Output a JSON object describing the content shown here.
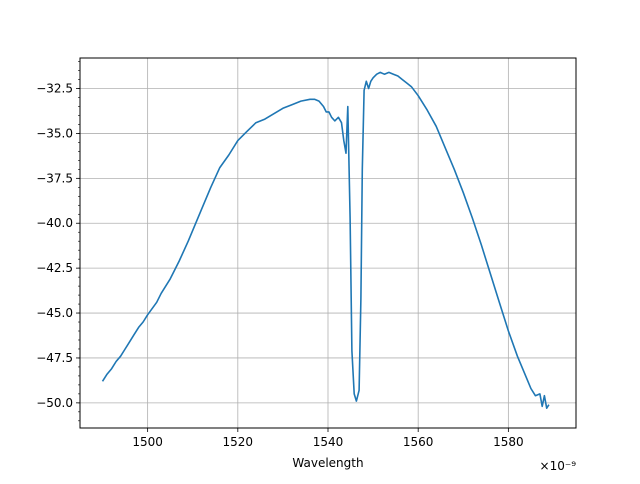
{
  "chart_data": {
    "type": "line",
    "title": "",
    "xlabel": "Wavelength",
    "ylabel": "",
    "x_offset_label": "×10⁻⁹",
    "xlim": [
      1485,
      1595
    ],
    "ylim": [
      -51.4,
      -30.8
    ],
    "x_ticks": [
      {
        "value": 1500,
        "label": "1500"
      },
      {
        "value": 1520,
        "label": "1520"
      },
      {
        "value": 1540,
        "label": "1540"
      },
      {
        "value": 1560,
        "label": "1560"
      },
      {
        "value": 1580,
        "label": "1580"
      }
    ],
    "y_ticks": [
      {
        "value": -32.5,
        "label": "−32.5"
      },
      {
        "value": -35.0,
        "label": "−35.0"
      },
      {
        "value": -37.5,
        "label": "−37.5"
      },
      {
        "value": -40.0,
        "label": "−40.0"
      },
      {
        "value": -42.5,
        "label": "−42.5"
      },
      {
        "value": -45.0,
        "label": "−45.0"
      },
      {
        "value": -47.5,
        "label": "−47.5"
      },
      {
        "value": -50.0,
        "label": "−50.0"
      }
    ],
    "grid": true,
    "legend": "none",
    "line_color": "#1f77b4",
    "series": [
      {
        "x": [
          1490,
          1491,
          1492,
          1493,
          1494,
          1495,
          1496,
          1497,
          1498,
          1499,
          1500,
          1502,
          1503,
          1505,
          1507,
          1509,
          1510,
          1512,
          1514,
          1516,
          1518,
          1520,
          1522,
          1524,
          1526,
          1528,
          1530,
          1532,
          1534,
          1536,
          1537,
          1538,
          1539,
          1539.6,
          1540.2,
          1540.8,
          1541.5,
          1542.3,
          1543,
          1543.5,
          1544,
          1544.4,
          1544.9,
          1545.3,
          1545.8,
          1546.3,
          1546.9,
          1547.3,
          1547.6,
          1548,
          1548.5,
          1549,
          1549.5,
          1550,
          1550.8,
          1551.6,
          1552.5,
          1553.5,
          1554.5,
          1555.5,
          1556.5,
          1557.5,
          1558.5,
          1560,
          1562,
          1564,
          1566,
          1568,
          1570,
          1572,
          1574,
          1576,
          1578,
          1580,
          1582,
          1584,
          1585,
          1586,
          1587,
          1587.5,
          1588,
          1588.5,
          1589
        ],
        "y": [
          -48.8,
          -48.4,
          -48.1,
          -47.7,
          -47.4,
          -47.0,
          -46.6,
          -46.2,
          -45.8,
          -45.5,
          -45.1,
          -44.4,
          -43.9,
          -43.1,
          -42.1,
          -41.0,
          -40.4,
          -39.2,
          -38.0,
          -36.9,
          -36.2,
          -35.4,
          -34.9,
          -34.4,
          -34.2,
          -33.9,
          -33.6,
          -33.4,
          -33.2,
          -33.1,
          -33.1,
          -33.2,
          -33.5,
          -33.8,
          -33.8,
          -34.1,
          -34.3,
          -34.1,
          -34.4,
          -35.4,
          -36.1,
          -33.5,
          -39.7,
          -47.1,
          -49.5,
          -49.9,
          -49.3,
          -44.2,
          -37.0,
          -32.6,
          -32.1,
          -32.5,
          -32.1,
          -31.9,
          -31.7,
          -31.6,
          -31.7,
          -31.6,
          -31.7,
          -31.8,
          -32.0,
          -32.2,
          -32.4,
          -32.9,
          -33.7,
          -34.6,
          -35.8,
          -37.0,
          -38.3,
          -39.7,
          -41.2,
          -42.8,
          -44.4,
          -46.0,
          -47.4,
          -48.6,
          -49.2,
          -49.6,
          -49.5,
          -50.2,
          -49.6,
          -50.3,
          -50.1
        ]
      }
    ]
  }
}
